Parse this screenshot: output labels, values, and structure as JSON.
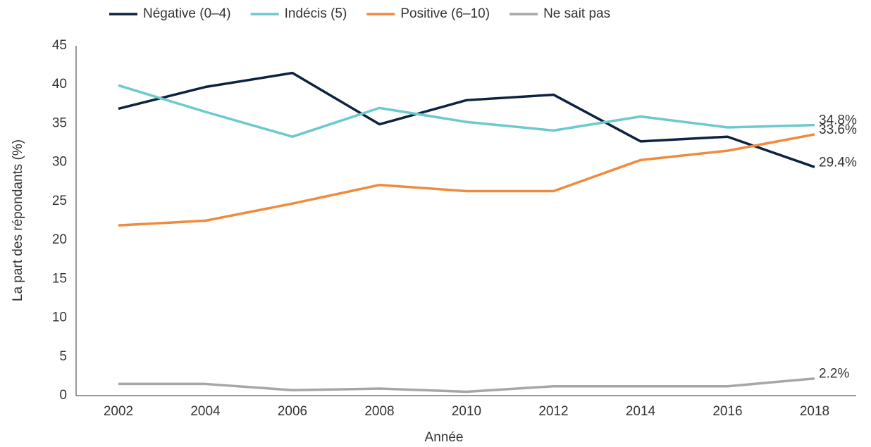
{
  "chart_data": {
    "type": "line",
    "x_label": "Année",
    "y_label": "La part des répondants (%)",
    "categories": [
      "2002",
      "2004",
      "2006",
      "2008",
      "2010",
      "2012",
      "2014",
      "2016",
      "2018"
    ],
    "series": [
      {
        "name": "Négative (0–4)",
        "color": "#0d2240",
        "values": [
          36.9,
          39.7,
          41.5,
          34.9,
          38.0,
          38.7,
          32.7,
          33.3,
          29.4
        ],
        "value_labels": [
          null,
          null,
          null,
          null,
          null,
          null,
          null,
          null,
          "29.4%"
        ]
      },
      {
        "name": "Indécis (5)",
        "color": "#6cc9cc",
        "values": [
          39.9,
          36.5,
          33.3,
          37.0,
          35.2,
          34.1,
          35.9,
          34.5,
          34.8
        ],
        "value_labels": [
          null,
          null,
          null,
          null,
          null,
          null,
          null,
          null,
          "34.8%"
        ]
      },
      {
        "name": "Positive (6–10)",
        "color": "#f08a3c",
        "values": [
          21.9,
          22.5,
          24.7,
          27.1,
          26.3,
          26.3,
          30.3,
          31.5,
          33.6
        ],
        "value_labels": [
          null,
          null,
          null,
          null,
          null,
          null,
          null,
          null,
          "33.6%"
        ]
      },
      {
        "name": "Ne sait pas",
        "color": "#a6a6a6",
        "values": [
          1.5,
          1.5,
          0.7,
          0.9,
          0.5,
          1.2,
          1.2,
          1.2,
          2.2
        ],
        "value_labels": [
          null,
          null,
          null,
          null,
          null,
          null,
          null,
          null,
          "2.2%"
        ]
      }
    ],
    "ylim": [
      0,
      45
    ],
    "yticks": [
      0,
      5,
      10,
      15,
      20,
      25,
      30,
      35,
      40,
      45
    ],
    "grid": false
  }
}
